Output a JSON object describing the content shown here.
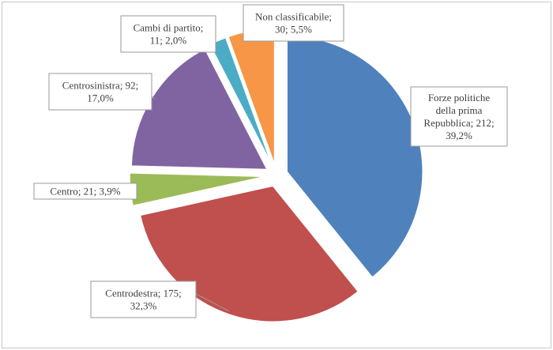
{
  "chart_data": {
    "type": "pie",
    "title": "",
    "exploded": true,
    "start_angle_deg": 0,
    "slices": [
      {
        "label_lines": [
          "Forze politiche",
          "della prima",
          "Repubblica; 212;",
          "39,2%"
        ],
        "category": "Forze politiche della prima Repubblica",
        "value": 212,
        "percent": 39.2,
        "color": "#4f81bd"
      },
      {
        "label_lines": [
          "Centrodestra; 175;",
          "32,3%"
        ],
        "category": "Centrodestra",
        "value": 175,
        "percent": 32.3,
        "color": "#c0504d"
      },
      {
        "label_lines": [
          "Centro; 21; 3,9%"
        ],
        "category": "Centro",
        "value": 21,
        "percent": 3.9,
        "color": "#9bbb59"
      },
      {
        "label_lines": [
          "Centrosinistra; 92;",
          "17,0%"
        ],
        "category": "Centrosinistra",
        "value": 92,
        "percent": 17.0,
        "color": "#8064a2"
      },
      {
        "label_lines": [
          "Cambi di partito;",
          "11; 2,0%"
        ],
        "category": "Cambi di partito",
        "value": 11,
        "percent": 2.0,
        "color": "#4bacc6"
      },
      {
        "label_lines": [
          "Non classificabile;",
          "30; 5,5%"
        ],
        "category": "Non classificabile",
        "value": 30,
        "percent": 5.5,
        "color": "#f79646"
      }
    ]
  }
}
